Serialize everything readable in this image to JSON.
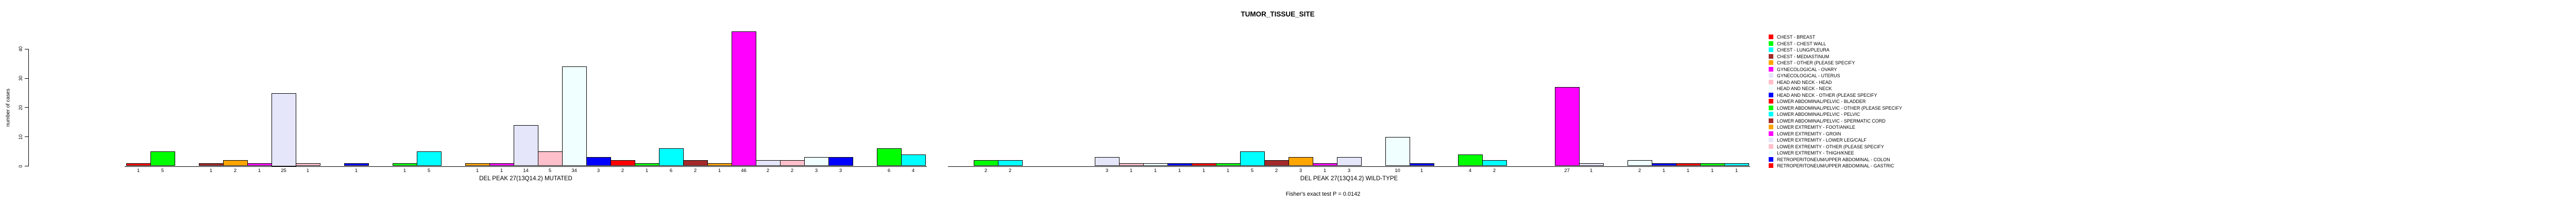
{
  "figure": {
    "title": "TUMOR_TISSUE_SITE",
    "caption": "Fisher's exact test P = 0.0142"
  },
  "chart_data": {
    "type": "bar",
    "title": "TUMOR_TISSUE_SITE",
    "xlabel": "",
    "ylabel": "number of cases",
    "yticks": [
      0,
      10,
      20,
      30,
      40
    ],
    "ylim": [
      0,
      46
    ],
    "grid": false,
    "bar_value_labels": true,
    "legend_position": "right-inside",
    "caption": "Fisher's exact test P = 0.0142",
    "palette": [
      "#FF0000",
      "#00FF00",
      "#00FFFF",
      "#A52A2A",
      "#FFA500",
      "#FF00FF",
      "#E6E6FA",
      "#FFC0CB",
      "#F0FFFF",
      "#0000FF"
    ],
    "palette_names": [
      "red",
      "green",
      "cyan",
      "brown",
      "orange",
      "magenta",
      "lavender",
      "pink",
      "azure",
      "blue"
    ],
    "legend_entries": [
      {
        "label": "CHEST - BREAST",
        "clipped": false
      },
      {
        "label": "CHEST - CHEST WALL",
        "clipped": false
      },
      {
        "label": "CHEST - LUNG/PLEURA",
        "clipped": false
      },
      {
        "label": "CHEST - MEDIASTINUM",
        "clipped": false
      },
      {
        "label": "CHEST - OTHER (PLEASE SPECIFY",
        "clipped": false
      },
      {
        "label": "GYNECOLOGICAL - OVARY",
        "clipped": false
      },
      {
        "label": "GYNECOLOGICAL - UTERUS",
        "clipped": false
      },
      {
        "label": "HEAD AND NECK - HEAD",
        "clipped": false
      },
      {
        "label": "HEAD AND NECK - NECK",
        "clipped": false
      },
      {
        "label": "HEAD AND NECK - OTHER (PLEASE SPECIFY",
        "clipped": false
      },
      {
        "label": "LOWER ABDOMINAL/PELVIC - BLADDER",
        "clipped": false
      },
      {
        "label": "LOWER ABDOMINAL/PELVIC - OTHER (PLEASE SPECIFY",
        "clipped": false
      },
      {
        "label": "LOWER ABDOMINAL/PELVIC - PELVIC",
        "clipped": false
      },
      {
        "label": "LOWER ABDOMINAL/PELVIC - SPERMATIC CORD",
        "clipped": false
      },
      {
        "label": "LOWER EXTREMITY - FOOT/ANKLE",
        "clipped": false
      },
      {
        "label": "LOWER EXTREMITY - GROIN",
        "clipped": false
      },
      {
        "label": "LOWER EXTREMITY - LOWER LEG/CALF",
        "clipped": false
      },
      {
        "label": "LOWER EXTREMITY - OTHER (PLEASE SPECIFY",
        "clipped": false
      },
      {
        "label": "LOWER EXTREMITY - THIGH/KNEE",
        "clipped": false
      },
      {
        "label": "RETROPERITONEUM/UPPER ABDOMINAL - COLON",
        "clipped": false
      },
      {
        "label": "RETROPERITONEUM/UPPER ABDOMINAL - GASTRIC",
        "clipped": true
      }
    ],
    "groups": [
      {
        "label": "DEL PEAK 27(13Q14.2) MUTATED",
        "values": [
          1,
          5,
          0,
          1,
          2,
          1,
          25,
          1,
          0,
          1,
          0,
          1,
          5,
          0,
          1,
          1,
          14,
          5,
          34,
          3,
          2,
          1,
          6,
          2,
          1,
          46,
          2,
          2,
          3,
          3,
          0,
          6,
          4
        ]
      },
      {
        "label": "DEL PEAK 27(13Q14.2) WILD-TYPE",
        "values": [
          0,
          2,
          2,
          0,
          0,
          0,
          3,
          1,
          1,
          1,
          1,
          1,
          5,
          2,
          3,
          1,
          3,
          0,
          10,
          1,
          0,
          4,
          2,
          0,
          0,
          27,
          1,
          0,
          2,
          1,
          1,
          1,
          1
        ]
      }
    ]
  }
}
